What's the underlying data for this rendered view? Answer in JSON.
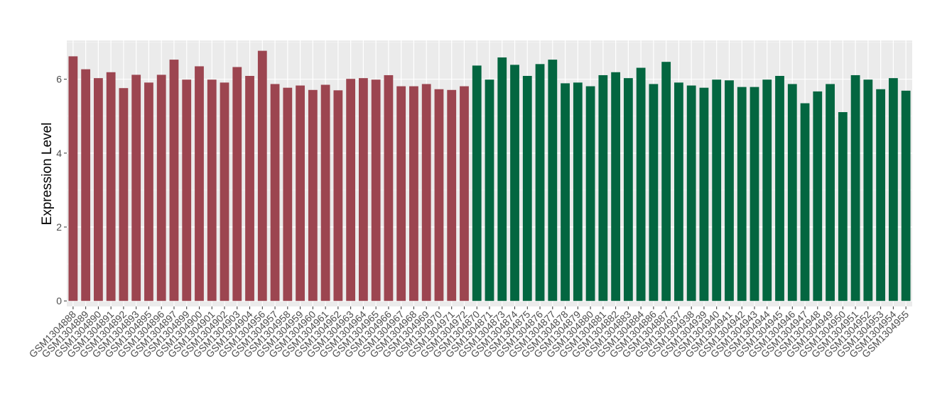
{
  "chart_data": {
    "type": "bar",
    "title": "",
    "xlabel": "",
    "ylabel": "Expression Level",
    "ylim": [
      -0.15,
      7.05
    ],
    "yticks": [
      0,
      2,
      4,
      6
    ],
    "grid": true,
    "legend": "none",
    "colors": {
      "group1": "#9C4550",
      "group2": "#036640",
      "panel": "#EBEBEB",
      "gridline": "#FFFFFF",
      "text": "#4D4D4D",
      "axis_title": "#000000"
    },
    "categories": [
      "GSM1304888",
      "GSM1304889",
      "GSM1304890",
      "GSM1304891",
      "GSM1304892",
      "GSM1304893",
      "GSM1304895",
      "GSM1304896",
      "GSM1304897",
      "GSM1304899",
      "GSM1304900",
      "GSM1304901",
      "GSM1304902",
      "GSM1304903",
      "GSM1304904",
      "GSM1304956",
      "GSM1304957",
      "GSM1304958",
      "GSM1304959",
      "GSM1304960",
      "GSM1304961",
      "GSM1304962",
      "GSM1304963",
      "GSM1304964",
      "GSM1304965",
      "GSM1304966",
      "GSM1304967",
      "GSM1304968",
      "GSM1304969",
      "GSM1304970",
      "GSM1304971",
      "GSM1304972",
      "GSM1304870",
      "GSM1304871",
      "GSM1304873",
      "GSM1304874",
      "GSM1304875",
      "GSM1304876",
      "GSM1304877",
      "GSM1304878",
      "GSM1304879",
      "GSM1304880",
      "GSM1304881",
      "GSM1304882",
      "GSM1304883",
      "GSM1304884",
      "GSM1304886",
      "GSM1304887",
      "GSM1304937",
      "GSM1304938",
      "GSM1304939",
      "GSM1304940",
      "GSM1304941",
      "GSM1304942",
      "GSM1304943",
      "GSM1304944",
      "GSM1304945",
      "GSM1304946",
      "GSM1304947",
      "GSM1304948",
      "GSM1304949",
      "GSM1304950",
      "GSM1304951",
      "GSM1304952",
      "GSM1304953",
      "GSM1304954",
      "GSM1304955"
    ],
    "values": [
      6.62,
      6.27,
      6.03,
      6.19,
      5.76,
      6.12,
      5.91,
      6.12,
      6.53,
      5.99,
      6.35,
      5.99,
      5.91,
      6.33,
      6.09,
      6.77,
      5.87,
      5.77,
      5.83,
      5.71,
      5.85,
      5.7,
      6.01,
      6.03,
      5.99,
      6.11,
      5.81,
      5.81,
      5.87,
      5.73,
      5.71,
      5.81,
      6.37,
      5.99,
      6.59,
      6.39,
      6.09,
      6.41,
      6.53,
      5.89,
      5.91,
      5.81,
      6.11,
      6.19,
      6.03,
      6.31,
      5.87,
      6.47,
      5.91,
      5.83,
      5.77,
      5.99,
      5.97,
      5.79,
      5.79,
      5.99,
      6.09,
      5.87,
      5.35,
      5.67,
      5.87,
      5.11,
      6.11,
      5.99,
      5.73,
      6.03,
      5.69
    ],
    "groups": [
      "group1",
      "group1",
      "group1",
      "group1",
      "group1",
      "group1",
      "group1",
      "group1",
      "group1",
      "group1",
      "group1",
      "group1",
      "group1",
      "group1",
      "group1",
      "group1",
      "group1",
      "group1",
      "group1",
      "group1",
      "group1",
      "group1",
      "group1",
      "group1",
      "group1",
      "group1",
      "group1",
      "group1",
      "group1",
      "group1",
      "group1",
      "group1",
      "group2",
      "group2",
      "group2",
      "group2",
      "group2",
      "group2",
      "group2",
      "group2",
      "group2",
      "group2",
      "group2",
      "group2",
      "group2",
      "group2",
      "group2",
      "group2",
      "group2",
      "group2",
      "group2",
      "group2",
      "group2",
      "group2",
      "group2",
      "group2",
      "group2",
      "group2",
      "group2",
      "group2",
      "group2",
      "group2",
      "group2",
      "group2",
      "group2",
      "group2",
      "group2"
    ]
  }
}
